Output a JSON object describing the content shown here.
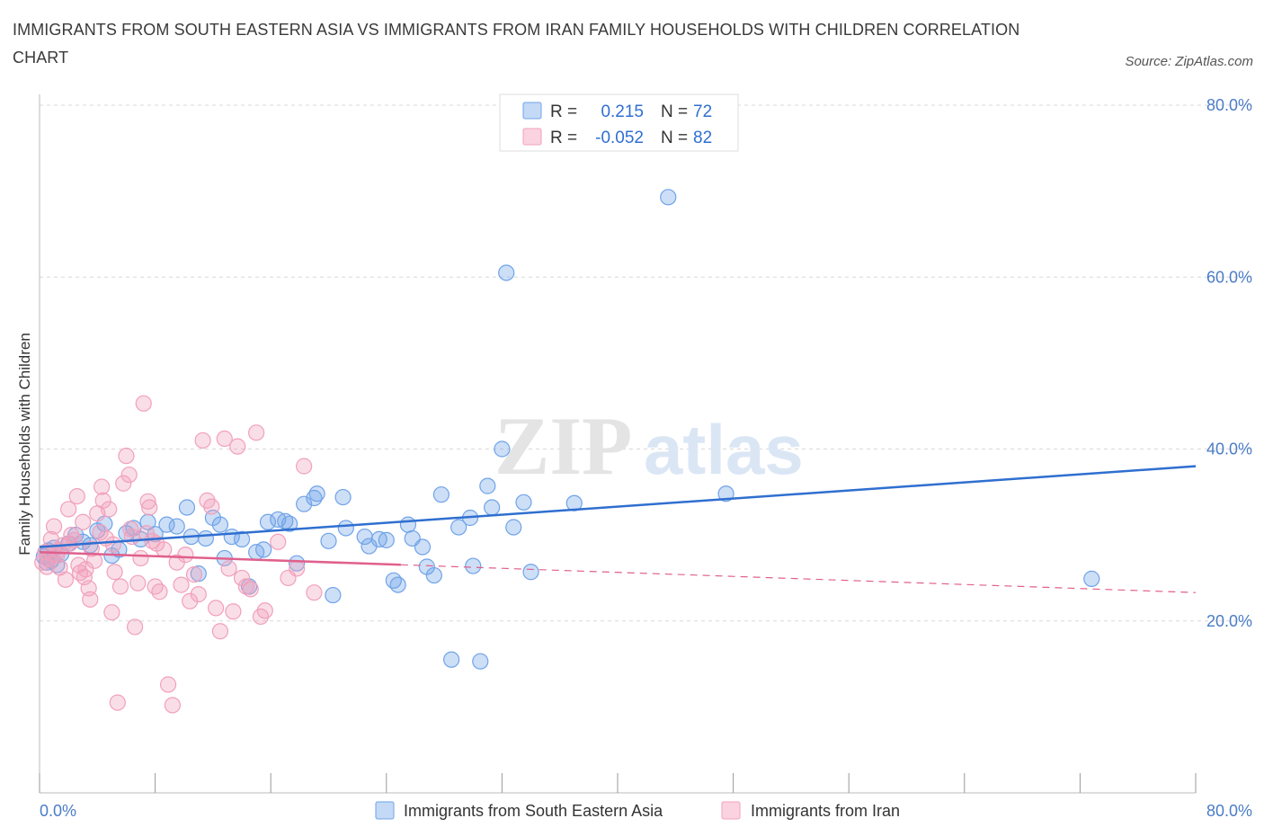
{
  "title": "IMMIGRANTS FROM SOUTH EASTERN ASIA VS IMMIGRANTS FROM IRAN FAMILY HOUSEHOLDS WITH CHILDREN CORRELATION CHART",
  "source": "Source: ZipAtlas.com",
  "colors": {
    "blue": "#6fa3e8",
    "blue_line": "#2f6fd0",
    "pink": "#f1a0bb",
    "pink_line": "#e0608d",
    "tick": "#4a7cc7",
    "grid": "#d8d8d8"
  },
  "legend": {
    "rows": [
      {
        "r_label": "R =",
        "r_value": "0.215",
        "n_label": "N =",
        "n_value": "72"
      },
      {
        "r_label": "R =",
        "r_value": "-0.052",
        "n_label": "N =",
        "n_value": "82"
      }
    ]
  },
  "watermark": {
    "zip": "ZIP",
    "atlas": "atlas"
  },
  "chart_data": {
    "type": "scatter",
    "title": "IMMIGRANTS FROM SOUTH EASTERN ASIA VS IMMIGRANTS FROM IRAN FAMILY HOUSEHOLDS WITH CHILDREN CORRELATION CHART",
    "xlabel": "",
    "ylabel": "Family Households with Children",
    "xlim": [
      0,
      80
    ],
    "ylim": [
      0,
      80
    ],
    "x_tick_labels": [
      "0.0%",
      "80.0%"
    ],
    "y_tick_labels": [
      "20.0%",
      "40.0%",
      "60.0%",
      "80.0%"
    ],
    "y_ticks": [
      20,
      40,
      60,
      80
    ],
    "grid": true,
    "legend_position": "bottom-center",
    "series": [
      {
        "name": "Immigrants from South Eastern Asia",
        "color": "#6fa3e8",
        "trend": {
          "x": [
            0,
            80
          ],
          "y": [
            28.6,
            38.0
          ],
          "dashed_from": null
        },
        "points": [
          [
            0.3,
            27.5
          ],
          [
            0.5,
            26.8
          ],
          [
            0.6,
            28.2
          ],
          [
            0.8,
            27.0
          ],
          [
            1.0,
            28.5
          ],
          [
            1.2,
            26.5
          ],
          [
            1.5,
            27.8
          ],
          [
            2.0,
            29.0
          ],
          [
            2.5,
            30.0
          ],
          [
            3.0,
            29.2
          ],
          [
            3.5,
            28.8
          ],
          [
            4.0,
            30.5
          ],
          [
            4.5,
            31.3
          ],
          [
            5.0,
            27.6
          ],
          [
            5.5,
            28.3
          ],
          [
            6.0,
            30.2
          ],
          [
            6.5,
            30.8
          ],
          [
            7.0,
            29.5
          ],
          [
            7.5,
            31.5
          ],
          [
            8.0,
            30.1
          ],
          [
            8.8,
            31.2
          ],
          [
            9.5,
            31.0
          ],
          [
            10.2,
            33.2
          ],
          [
            10.5,
            29.8
          ],
          [
            11.0,
            25.5
          ],
          [
            11.5,
            29.6
          ],
          [
            12.0,
            32.0
          ],
          [
            12.5,
            31.2
          ],
          [
            12.8,
            27.3
          ],
          [
            13.3,
            29.8
          ],
          [
            14.0,
            29.5
          ],
          [
            14.5,
            24.0
          ],
          [
            15.0,
            28.0
          ],
          [
            15.5,
            28.3
          ],
          [
            15.8,
            31.5
          ],
          [
            16.5,
            31.8
          ],
          [
            17.0,
            31.6
          ],
          [
            17.3,
            31.3
          ],
          [
            17.8,
            26.7
          ],
          [
            18.3,
            33.6
          ],
          [
            19.0,
            34.3
          ],
          [
            19.2,
            34.8
          ],
          [
            20.0,
            29.3
          ],
          [
            20.3,
            23.0
          ],
          [
            21.0,
            34.4
          ],
          [
            21.2,
            30.8
          ],
          [
            22.5,
            29.8
          ],
          [
            22.8,
            28.7
          ],
          [
            23.5,
            29.5
          ],
          [
            24.0,
            29.4
          ],
          [
            24.5,
            24.7
          ],
          [
            24.8,
            24.2
          ],
          [
            25.5,
            31.2
          ],
          [
            25.8,
            29.6
          ],
          [
            26.5,
            28.6
          ],
          [
            26.8,
            26.3
          ],
          [
            27.3,
            25.3
          ],
          [
            27.8,
            34.7
          ],
          [
            28.5,
            15.5
          ],
          [
            29.0,
            30.9
          ],
          [
            29.8,
            32.0
          ],
          [
            30.0,
            26.4
          ],
          [
            30.5,
            15.3
          ],
          [
            31.0,
            35.7
          ],
          [
            31.3,
            33.2
          ],
          [
            32.0,
            40.0
          ],
          [
            32.3,
            60.5
          ],
          [
            32.8,
            30.9
          ],
          [
            33.5,
            33.8
          ],
          [
            34.0,
            25.7
          ],
          [
            37.0,
            33.7
          ],
          [
            43.5,
            69.3
          ],
          [
            47.5,
            34.8
          ],
          [
            72.8,
            24.9
          ]
        ]
      },
      {
        "name": "Immigrants from Iran",
        "color": "#f1a0bb",
        "trend": {
          "x": [
            0,
            80
          ],
          "y": [
            28.0,
            23.3
          ],
          "dashed_from": 25
        },
        "points": [
          [
            0.2,
            26.8
          ],
          [
            0.4,
            28.0
          ],
          [
            0.6,
            27.2
          ],
          [
            0.8,
            29.5
          ],
          [
            1.0,
            31.0
          ],
          [
            1.2,
            27.6
          ],
          [
            1.4,
            26.2
          ],
          [
            1.6,
            28.8
          ],
          [
            1.8,
            24.8
          ],
          [
            2.0,
            33.0
          ],
          [
            2.2,
            30.0
          ],
          [
            2.4,
            29.4
          ],
          [
            2.6,
            34.5
          ],
          [
            2.8,
            25.6
          ],
          [
            3.0,
            31.5
          ],
          [
            3.2,
            26.0
          ],
          [
            3.4,
            23.8
          ],
          [
            3.6,
            28.4
          ],
          [
            3.8,
            27.0
          ],
          [
            4.0,
            32.5
          ],
          [
            4.2,
            30.3
          ],
          [
            4.4,
            34.0
          ],
          [
            4.6,
            29.6
          ],
          [
            4.8,
            33.0
          ],
          [
            5.0,
            21.0
          ],
          [
            5.2,
            25.7
          ],
          [
            5.4,
            10.5
          ],
          [
            5.6,
            24.0
          ],
          [
            5.8,
            36.0
          ],
          [
            6.0,
            39.2
          ],
          [
            6.2,
            37.0
          ],
          [
            6.4,
            29.8
          ],
          [
            6.6,
            19.3
          ],
          [
            6.8,
            24.4
          ],
          [
            7.0,
            27.3
          ],
          [
            7.2,
            45.3
          ],
          [
            7.4,
            30.2
          ],
          [
            7.6,
            33.2
          ],
          [
            7.8,
            29.3
          ],
          [
            8.0,
            24.0
          ],
          [
            8.3,
            23.4
          ],
          [
            8.6,
            28.3
          ],
          [
            8.9,
            12.6
          ],
          [
            9.2,
            10.2
          ],
          [
            9.5,
            26.8
          ],
          [
            9.8,
            24.2
          ],
          [
            10.1,
            27.7
          ],
          [
            10.4,
            22.3
          ],
          [
            10.7,
            25.4
          ],
          [
            11.0,
            23.1
          ],
          [
            11.3,
            41.0
          ],
          [
            11.6,
            34.0
          ],
          [
            11.9,
            33.3
          ],
          [
            12.2,
            21.5
          ],
          [
            12.5,
            18.8
          ],
          [
            12.8,
            41.2
          ],
          [
            13.1,
            26.1
          ],
          [
            13.4,
            21.1
          ],
          [
            13.7,
            40.3
          ],
          [
            14.0,
            25.0
          ],
          [
            14.3,
            24.0
          ],
          [
            14.6,
            23.7
          ],
          [
            15.0,
            41.9
          ],
          [
            15.3,
            20.5
          ],
          [
            15.6,
            21.2
          ],
          [
            16.5,
            29.2
          ],
          [
            17.2,
            25.0
          ],
          [
            17.8,
            26.1
          ],
          [
            18.3,
            38.0
          ],
          [
            19.0,
            23.3
          ],
          [
            0.5,
            26.3
          ],
          [
            0.9,
            27.8
          ],
          [
            1.3,
            28.2
          ],
          [
            2.1,
            29.0
          ],
          [
            2.7,
            26.5
          ],
          [
            3.1,
            25.1
          ],
          [
            3.5,
            22.5
          ],
          [
            4.3,
            35.6
          ],
          [
            5.1,
            28.9
          ],
          [
            6.3,
            30.7
          ],
          [
            7.5,
            33.9
          ],
          [
            8.1,
            29.0
          ]
        ]
      }
    ]
  },
  "bottom_legend": {
    "items": [
      {
        "label": "Immigrants from South Eastern Asia"
      },
      {
        "label": "Immigrants from Iran"
      }
    ]
  }
}
